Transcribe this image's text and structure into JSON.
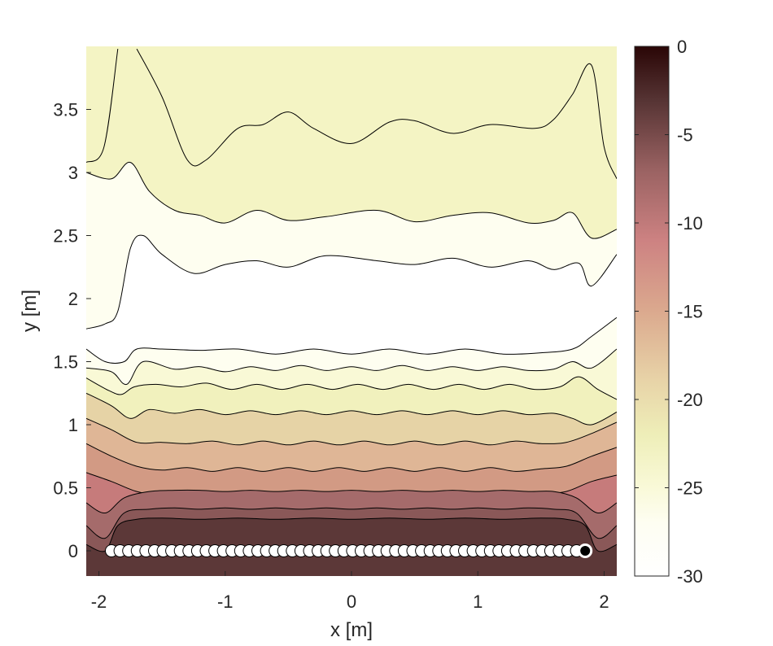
{
  "chart_data": {
    "type": "contour",
    "title": "",
    "xlabel": "x [m]",
    "ylabel": "y [m]",
    "xlim": [
      -2.1,
      2.1
    ],
    "ylim": [
      -0.2,
      4.0
    ],
    "x_ticks": [
      -2,
      -1,
      0,
      1,
      2
    ],
    "x_tick_labels": [
      "-2",
      "-1",
      "0",
      "1",
      "2"
    ],
    "y_ticks": [
      0,
      0.5,
      1,
      1.5,
      2,
      2.5,
      3,
      3.5
    ],
    "y_tick_labels": [
      "0",
      "0.5",
      "1",
      "1.5",
      "2",
      "2.5",
      "3",
      "3.5"
    ],
    "colorbar": {
      "clim": [
        -30,
        0
      ],
      "ticks": [
        0,
        -5,
        -10,
        -15,
        -20,
        -25,
        -30
      ],
      "tick_labels": [
        "0",
        "-5",
        "-10",
        "-15",
        "-20",
        "-25",
        "-30"
      ]
    },
    "colormap": [
      {
        "v": 0,
        "c": "#2a0606"
      },
      {
        "v": -3,
        "c": "#553333"
      },
      {
        "v": -7,
        "c": "#9a6262"
      },
      {
        "v": -11,
        "c": "#cd8282"
      },
      {
        "v": -15,
        "c": "#dba98e"
      },
      {
        "v": -19,
        "c": "#e8d4a8"
      },
      {
        "v": -22,
        "c": "#eeeeb8"
      },
      {
        "v": -25,
        "c": "#f9f9d8"
      },
      {
        "v": -27,
        "c": "#fefef2"
      },
      {
        "v": -30,
        "c": "#ffffff"
      }
    ],
    "contour_bands": [
      {
        "level": -26.5,
        "color": "#fefef0",
        "top": [
          [
            -2.1,
            3.0
          ],
          [
            -1.9,
            2.95
          ],
          [
            -1.75,
            3.08
          ],
          [
            -1.6,
            2.85
          ],
          [
            -1.4,
            2.7
          ],
          [
            -1.2,
            2.66
          ],
          [
            -1.0,
            2.6
          ],
          [
            -0.75,
            2.7
          ],
          [
            -0.5,
            2.62
          ],
          [
            -0.2,
            2.65
          ],
          [
            0.2,
            2.7
          ],
          [
            0.5,
            2.61
          ],
          [
            0.8,
            2.66
          ],
          [
            1.1,
            2.68
          ],
          [
            1.4,
            2.6
          ],
          [
            1.6,
            2.62
          ],
          [
            1.75,
            2.68
          ],
          [
            1.9,
            2.48
          ],
          [
            2.1,
            2.55
          ]
        ]
      },
      {
        "level": -28.5,
        "color": "#ffffff",
        "top": [
          [
            -2.1,
            1.76
          ],
          [
            -1.95,
            1.8
          ],
          [
            -1.85,
            1.9
          ],
          [
            -1.75,
            2.4
          ],
          [
            -1.65,
            2.5
          ],
          [
            -1.5,
            2.35
          ],
          [
            -1.25,
            2.2
          ],
          [
            -1.0,
            2.27
          ],
          [
            -0.75,
            2.3
          ],
          [
            -0.5,
            2.25
          ],
          [
            -0.2,
            2.34
          ],
          [
            0.2,
            2.3
          ],
          [
            0.5,
            2.27
          ],
          [
            0.8,
            2.32
          ],
          [
            1.1,
            2.25
          ],
          [
            1.4,
            2.3
          ],
          [
            1.6,
            2.23
          ],
          [
            1.8,
            2.28
          ],
          [
            1.9,
            2.1
          ],
          [
            2.1,
            2.35
          ]
        ]
      },
      {
        "level": -27,
        "color": "#fefef0",
        "top": [
          [
            -2.1,
            1.6
          ],
          [
            -1.95,
            1.5
          ],
          [
            -1.8,
            1.5
          ],
          [
            -1.7,
            1.6
          ],
          [
            -1.5,
            1.6
          ],
          [
            -1.2,
            1.59
          ],
          [
            -0.9,
            1.6
          ],
          [
            -0.6,
            1.56
          ],
          [
            -0.3,
            1.6
          ],
          [
            0,
            1.56
          ],
          [
            0.3,
            1.6
          ],
          [
            0.6,
            1.56
          ],
          [
            0.9,
            1.6
          ],
          [
            1.2,
            1.56
          ],
          [
            1.5,
            1.57
          ],
          [
            1.75,
            1.6
          ],
          [
            1.9,
            1.7
          ],
          [
            2.1,
            1.85
          ]
        ]
      },
      {
        "level": -25,
        "color": "#f9f9d6",
        "top": [
          [
            -2.1,
            1.45
          ],
          [
            -1.9,
            1.42
          ],
          [
            -1.78,
            1.32
          ],
          [
            -1.65,
            1.5
          ],
          [
            -1.4,
            1.44
          ],
          [
            -1.2,
            1.46
          ],
          [
            -1.0,
            1.42
          ],
          [
            -0.8,
            1.46
          ],
          [
            -0.6,
            1.43
          ],
          [
            -0.4,
            1.47
          ],
          [
            -0.2,
            1.43
          ],
          [
            0,
            1.46
          ],
          [
            0.2,
            1.43
          ],
          [
            0.4,
            1.47
          ],
          [
            0.6,
            1.43
          ],
          [
            0.8,
            1.46
          ],
          [
            1.0,
            1.43
          ],
          [
            1.2,
            1.46
          ],
          [
            1.4,
            1.43
          ],
          [
            1.6,
            1.44
          ],
          [
            1.75,
            1.5
          ],
          [
            1.9,
            1.45
          ],
          [
            2.1,
            1.6
          ]
        ]
      },
      {
        "level": -23,
        "color": "#f1f1bd",
        "top": [
          [
            -2.1,
            1.37
          ],
          [
            -1.92,
            1.27
          ],
          [
            -1.82,
            1.24
          ],
          [
            -1.72,
            1.3
          ],
          [
            -1.55,
            1.32
          ],
          [
            -1.35,
            1.3
          ],
          [
            -1.15,
            1.33
          ],
          [
            -0.95,
            1.28
          ],
          [
            -0.75,
            1.32
          ],
          [
            -0.55,
            1.28
          ],
          [
            -0.35,
            1.32
          ],
          [
            -0.15,
            1.28
          ],
          [
            0.05,
            1.32
          ],
          [
            0.25,
            1.28
          ],
          [
            0.45,
            1.32
          ],
          [
            0.65,
            1.28
          ],
          [
            0.85,
            1.32
          ],
          [
            1.05,
            1.28
          ],
          [
            1.25,
            1.32
          ],
          [
            1.45,
            1.28
          ],
          [
            1.65,
            1.3
          ],
          [
            1.8,
            1.38
          ],
          [
            1.95,
            1.28
          ],
          [
            2.1,
            1.2
          ]
        ]
      },
      {
        "level": -20,
        "color": "#e6d3a6",
        "top": [
          [
            -2.1,
            1.25
          ],
          [
            -1.9,
            1.15
          ],
          [
            -1.75,
            1.05
          ],
          [
            -1.6,
            1.12
          ],
          [
            -1.4,
            1.09
          ],
          [
            -1.2,
            1.12
          ],
          [
            -1.0,
            1.08
          ],
          [
            -0.8,
            1.11
          ],
          [
            -0.6,
            1.08
          ],
          [
            -0.4,
            1.11
          ],
          [
            -0.2,
            1.08
          ],
          [
            0,
            1.11
          ],
          [
            0.2,
            1.08
          ],
          [
            0.4,
            1.11
          ],
          [
            0.6,
            1.08
          ],
          [
            0.8,
            1.11
          ],
          [
            1.0,
            1.08
          ],
          [
            1.2,
            1.11
          ],
          [
            1.4,
            1.08
          ],
          [
            1.6,
            1.09
          ],
          [
            1.75,
            1.05
          ],
          [
            1.9,
            1.0
          ],
          [
            2.1,
            1.1
          ]
        ]
      },
      {
        "level": -17,
        "color": "#dfb696",
        "top": [
          [
            -2.1,
            1.05
          ],
          [
            -1.9,
            0.96
          ],
          [
            -1.7,
            0.86
          ],
          [
            -1.5,
            0.86
          ],
          [
            -1.3,
            0.85
          ],
          [
            -1.1,
            0.87
          ],
          [
            -0.9,
            0.84
          ],
          [
            -0.7,
            0.87
          ],
          [
            -0.5,
            0.84
          ],
          [
            -0.3,
            0.87
          ],
          [
            -0.1,
            0.84
          ],
          [
            0.1,
            0.87
          ],
          [
            0.3,
            0.84
          ],
          [
            0.5,
            0.87
          ],
          [
            0.7,
            0.84
          ],
          [
            0.9,
            0.87
          ],
          [
            1.1,
            0.84
          ],
          [
            1.3,
            0.87
          ],
          [
            1.5,
            0.85
          ],
          [
            1.7,
            0.86
          ],
          [
            1.9,
            0.93
          ],
          [
            2.1,
            1.02
          ]
        ]
      },
      {
        "level": -14,
        "color": "#d29a84",
        "top": [
          [
            -2.1,
            0.85
          ],
          [
            -1.9,
            0.75
          ],
          [
            -1.7,
            0.67
          ],
          [
            -1.5,
            0.64
          ],
          [
            -1.3,
            0.66
          ],
          [
            -1.1,
            0.63
          ],
          [
            -0.9,
            0.66
          ],
          [
            -0.7,
            0.63
          ],
          [
            -0.5,
            0.66
          ],
          [
            -0.3,
            0.63
          ],
          [
            -0.1,
            0.66
          ],
          [
            0.1,
            0.63
          ],
          [
            0.3,
            0.66
          ],
          [
            0.5,
            0.63
          ],
          [
            0.7,
            0.66
          ],
          [
            0.9,
            0.63
          ],
          [
            1.1,
            0.66
          ],
          [
            1.3,
            0.63
          ],
          [
            1.5,
            0.65
          ],
          [
            1.7,
            0.67
          ],
          [
            1.9,
            0.75
          ],
          [
            2.1,
            0.82
          ]
        ]
      },
      {
        "level": -11,
        "color": "#c67b7b",
        "top": [
          [
            -2.1,
            0.62
          ],
          [
            -1.9,
            0.55
          ],
          [
            -1.7,
            0.47
          ],
          [
            -1.5,
            0.44
          ],
          [
            -1.3,
            0.46
          ],
          [
            -1.1,
            0.43
          ],
          [
            -0.9,
            0.46
          ],
          [
            -0.7,
            0.43
          ],
          [
            -0.5,
            0.46
          ],
          [
            -0.3,
            0.43
          ],
          [
            -0.1,
            0.46
          ],
          [
            0.1,
            0.43
          ],
          [
            0.3,
            0.46
          ],
          [
            0.5,
            0.43
          ],
          [
            0.7,
            0.46
          ],
          [
            0.9,
            0.43
          ],
          [
            1.1,
            0.46
          ],
          [
            1.3,
            0.43
          ],
          [
            1.5,
            0.45
          ],
          [
            1.7,
            0.47
          ],
          [
            1.9,
            0.55
          ],
          [
            2.1,
            0.6
          ]
        ]
      },
      {
        "level": -8,
        "color": "#a56b6b",
        "top": [
          [
            -2.1,
            0.38
          ],
          [
            -1.95,
            0.3
          ],
          [
            -1.8,
            0.42
          ],
          [
            -1.6,
            0.47
          ],
          [
            -1.4,
            0.48
          ],
          [
            -1.2,
            0.48
          ],
          [
            -1.0,
            0.47
          ],
          [
            -0.8,
            0.48
          ],
          [
            -0.6,
            0.47
          ],
          [
            -0.4,
            0.48
          ],
          [
            -0.2,
            0.47
          ],
          [
            0,
            0.48
          ],
          [
            0.2,
            0.47
          ],
          [
            0.4,
            0.48
          ],
          [
            0.6,
            0.47
          ],
          [
            0.8,
            0.48
          ],
          [
            1.0,
            0.47
          ],
          [
            1.2,
            0.48
          ],
          [
            1.4,
            0.47
          ],
          [
            1.6,
            0.47
          ],
          [
            1.78,
            0.42
          ],
          [
            1.95,
            0.3
          ],
          [
            2.1,
            0.38
          ]
        ]
      },
      {
        "level": -5,
        "color": "#8a5858",
        "top": [
          [
            -2.1,
            0.2
          ],
          [
            -1.95,
            0.1
          ],
          [
            -1.8,
            0.3
          ],
          [
            -1.6,
            0.33
          ],
          [
            -1.4,
            0.34
          ],
          [
            -1.2,
            0.33
          ],
          [
            -1.0,
            0.34
          ],
          [
            -0.8,
            0.33
          ],
          [
            -0.6,
            0.34
          ],
          [
            -0.4,
            0.33
          ],
          [
            -0.2,
            0.34
          ],
          [
            0,
            0.33
          ],
          [
            0.2,
            0.34
          ],
          [
            0.4,
            0.33
          ],
          [
            0.6,
            0.34
          ],
          [
            0.8,
            0.33
          ],
          [
            1.0,
            0.34
          ],
          [
            1.2,
            0.33
          ],
          [
            1.4,
            0.34
          ],
          [
            1.6,
            0.33
          ],
          [
            1.78,
            0.3
          ],
          [
            1.95,
            0.1
          ],
          [
            2.1,
            0.2
          ]
        ]
      },
      {
        "level": -2.5,
        "color": "#5c3838",
        "top": [
          [
            -2.1,
            0.05
          ],
          [
            -1.95,
            0.0
          ],
          [
            -1.85,
            0.2
          ],
          [
            -1.7,
            0.25
          ],
          [
            -1.5,
            0.26
          ],
          [
            -1.2,
            0.25
          ],
          [
            -0.9,
            0.26
          ],
          [
            -0.6,
            0.25
          ],
          [
            -0.3,
            0.26
          ],
          [
            0,
            0.25
          ],
          [
            0.3,
            0.26
          ],
          [
            0.6,
            0.25
          ],
          [
            0.9,
            0.26
          ],
          [
            1.2,
            0.25
          ],
          [
            1.5,
            0.26
          ],
          [
            1.7,
            0.25
          ],
          [
            1.85,
            0.2
          ],
          [
            1.95,
            0.0
          ],
          [
            2.1,
            0.05
          ]
        ]
      }
    ],
    "background_band": {
      "level": -23.5,
      "color": "#f4f4c4"
    },
    "extra_contours": [
      {
        "level": -24,
        "points": [
          [
            -2.1,
            3.08
          ],
          [
            -1.96,
            3.2
          ],
          [
            -1.85,
            3.98
          ]
        ]
      },
      {
        "level": -24,
        "points": [
          [
            -1.7,
            3.98
          ],
          [
            -1.5,
            3.6
          ],
          [
            -1.3,
            3.1
          ],
          [
            -1.15,
            3.1
          ],
          [
            -0.9,
            3.35
          ],
          [
            -0.7,
            3.38
          ],
          [
            -0.5,
            3.48
          ],
          [
            -0.3,
            3.35
          ],
          [
            0,
            3.23
          ],
          [
            0.3,
            3.4
          ],
          [
            0.5,
            3.41
          ],
          [
            0.8,
            3.31
          ],
          [
            1.1,
            3.38
          ],
          [
            1.45,
            3.35
          ],
          [
            1.6,
            3.42
          ],
          [
            1.75,
            3.62
          ],
          [
            1.9,
            3.85
          ],
          [
            2.0,
            3.2
          ],
          [
            2.1,
            2.95
          ]
        ]
      }
    ],
    "loudspeakers": {
      "y": 0,
      "x_start": -1.9,
      "x_end": 1.85,
      "count": 56,
      "active_index": 55,
      "color": "#ffffff",
      "active_color": "#000000"
    }
  }
}
